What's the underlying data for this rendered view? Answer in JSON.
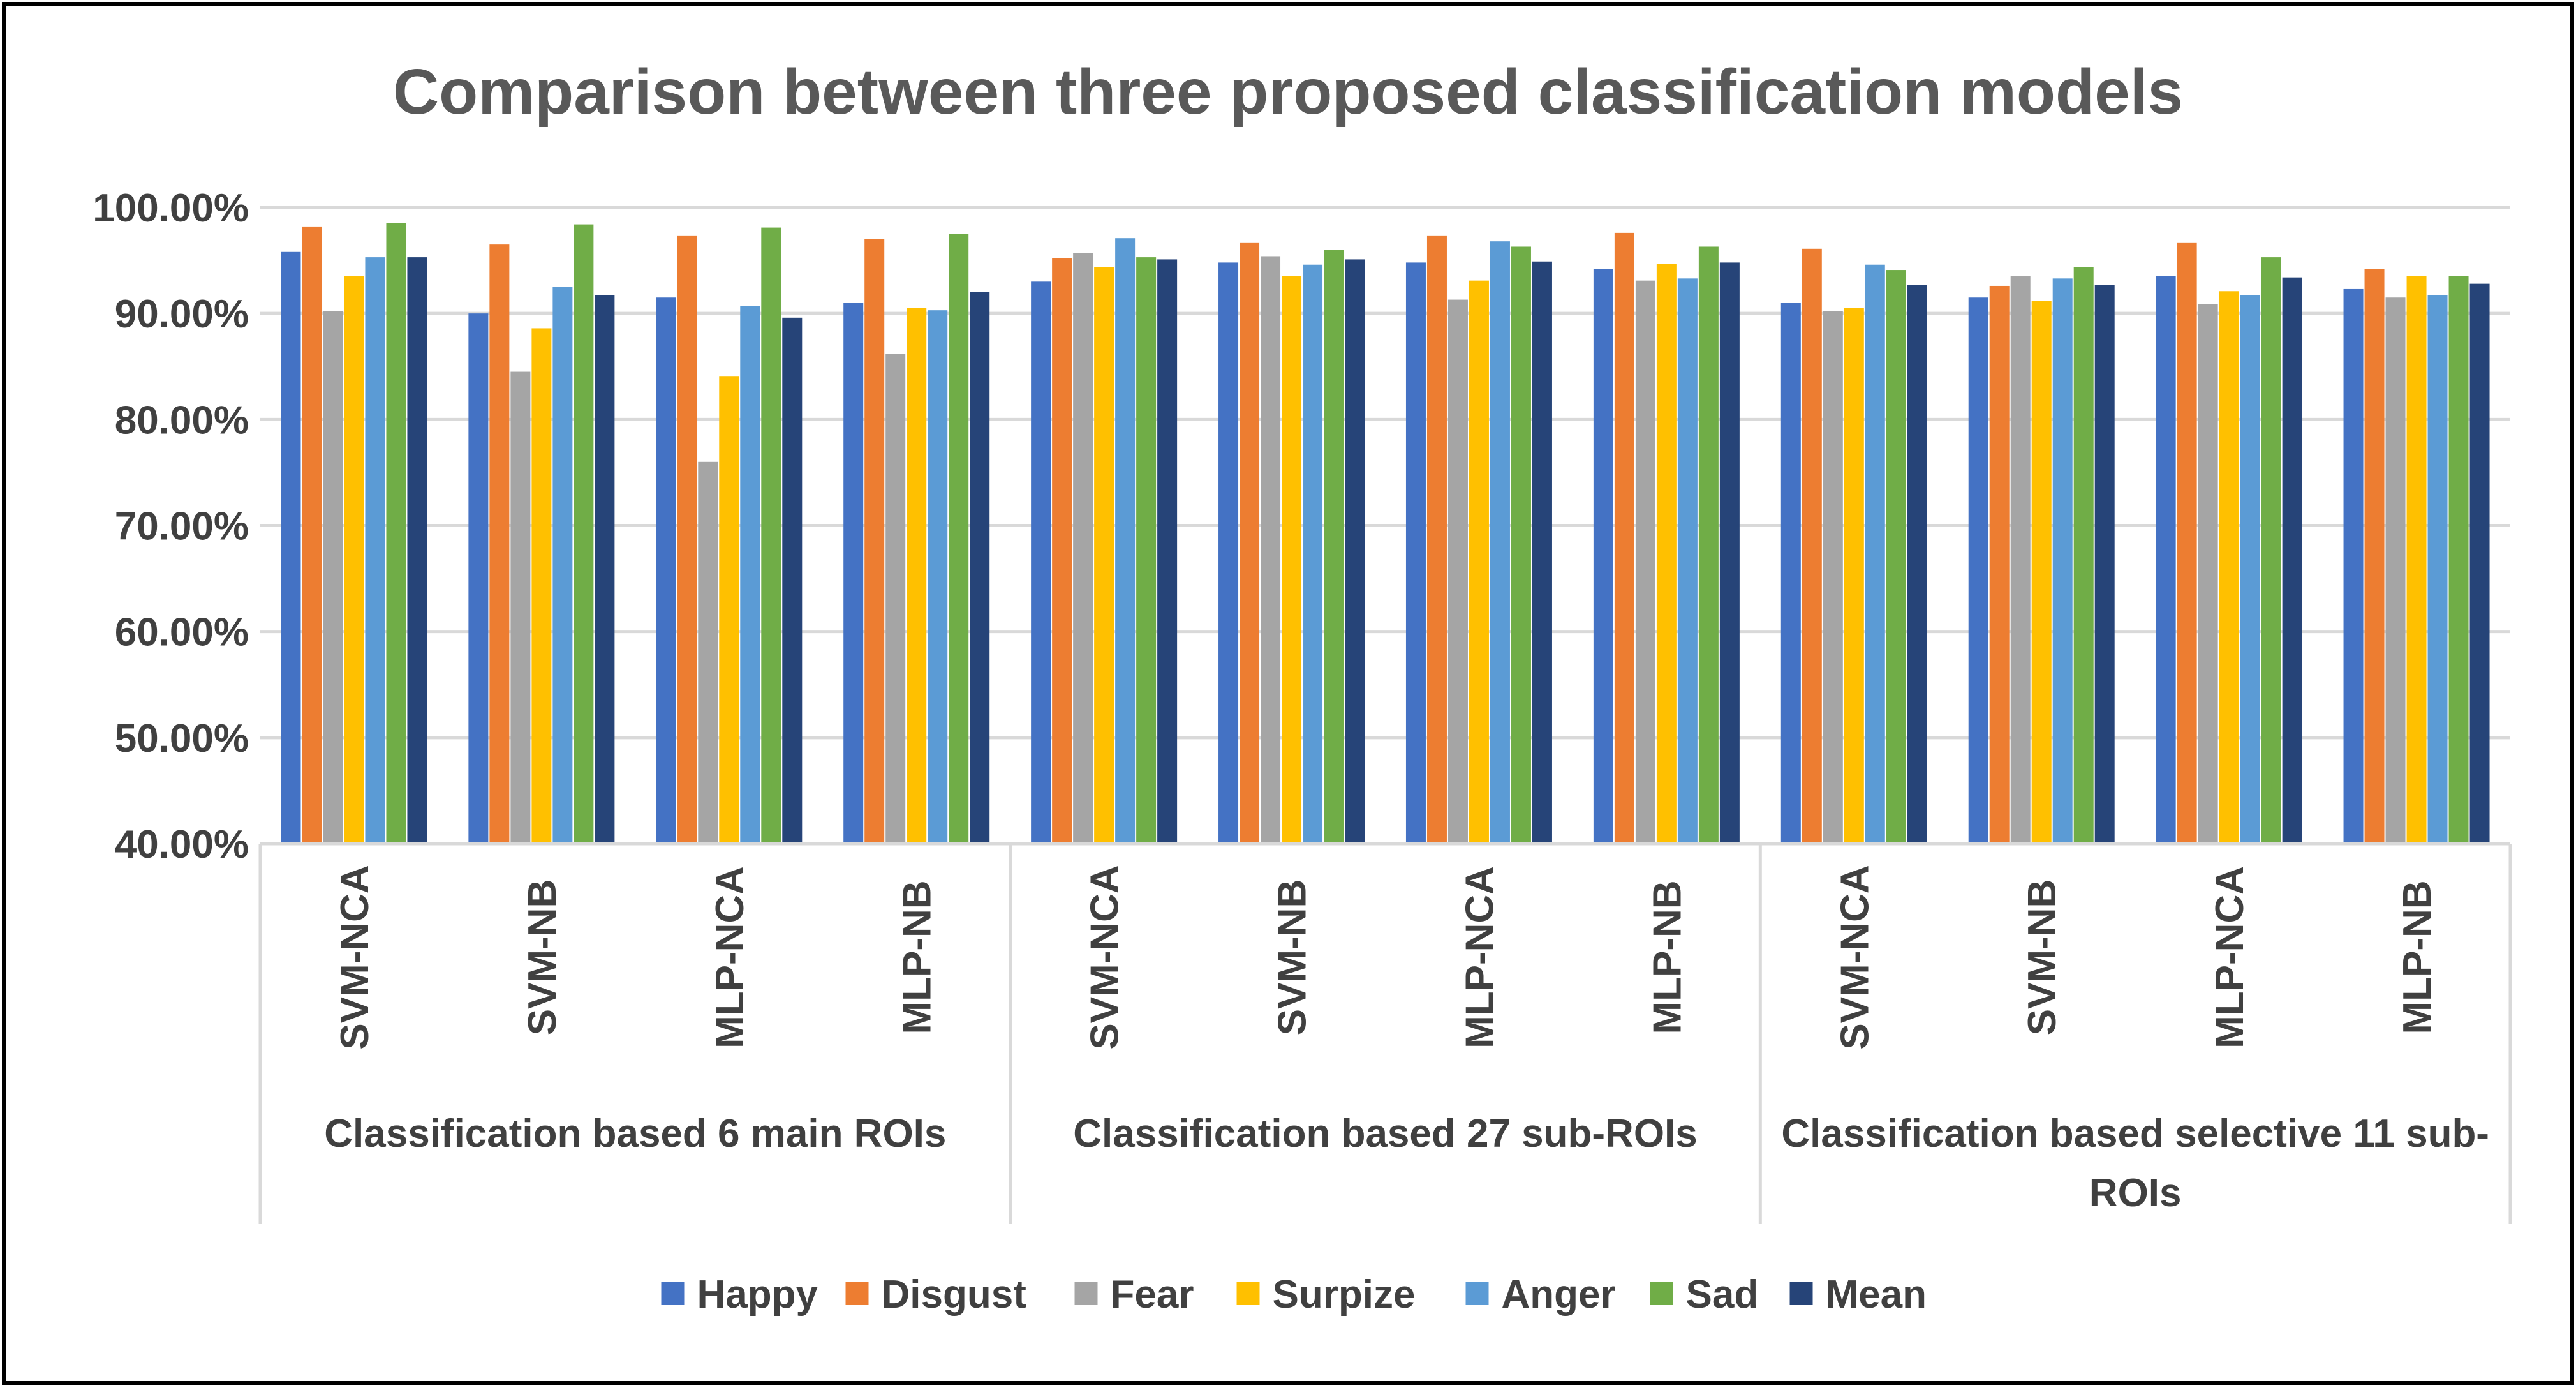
{
  "chart_data": {
    "type": "bar",
    "title": "Comparison between three proposed classification models",
    "xlabel": "",
    "ylabel": "",
    "ylim": [
      0.4,
      1.0
    ],
    "yticks": [
      0.4,
      0.5,
      0.6,
      0.7,
      0.8,
      0.9,
      1.0
    ],
    "ytick_labels": [
      "40.00%",
      "50.00%",
      "60.00%",
      "70.00%",
      "80.00%",
      "90.00%",
      "100.00%"
    ],
    "grid": true,
    "legend_position": "bottom",
    "groups": [
      {
        "label": "Classification based 6 main ROIs",
        "label_lines": [
          "Classification based 6 main ROIs"
        ],
        "categories": [
          "SVM-NCA",
          "SVM-NB",
          "MLP-NCA",
          "MLP-NB"
        ]
      },
      {
        "label": "Classification based 27 sub-ROIs",
        "label_lines": [
          "Classification based 27 sub-ROIs"
        ],
        "categories": [
          "SVM-NCA",
          "SVM-NB",
          "MLP-NCA",
          "MLP-NB"
        ]
      },
      {
        "label": "Classification based selective 11 sub-ROIs",
        "label_lines": [
          "Classification based selective 11 sub-",
          "ROIs"
        ],
        "categories": [
          "SVM-NCA",
          "SVM-NB",
          "MLP-NCA",
          "MLP-NB"
        ]
      }
    ],
    "categories": [
      "SVM-NCA",
      "SVM-NB",
      "MLP-NCA",
      "MLP-NB",
      "SVM-NCA",
      "SVM-NB",
      "MLP-NCA",
      "MLP-NB",
      "SVM-NCA",
      "SVM-NB",
      "MLP-NCA",
      "MLP-NB"
    ],
    "series": [
      {
        "name": "Happy",
        "color": "#4472C4",
        "values": [
          0.958,
          0.9,
          0.915,
          0.91,
          0.93,
          0.948,
          0.948,
          0.942,
          0.91,
          0.915,
          0.935,
          0.923
        ]
      },
      {
        "name": "Disgust",
        "color": "#ED7D31",
        "values": [
          0.982,
          0.965,
          0.973,
          0.97,
          0.952,
          0.967,
          0.973,
          0.976,
          0.961,
          0.926,
          0.967,
          0.942
        ]
      },
      {
        "name": "Fear",
        "color": "#A5A5A5",
        "values": [
          0.902,
          0.845,
          0.76,
          0.862,
          0.957,
          0.954,
          0.913,
          0.931,
          0.902,
          0.935,
          0.909,
          0.915
        ]
      },
      {
        "name": "Surpize",
        "color": "#FFC000",
        "values": [
          0.935,
          0.886,
          0.841,
          0.905,
          0.944,
          0.935,
          0.931,
          0.947,
          0.905,
          0.912,
          0.921,
          0.935
        ]
      },
      {
        "name": "Anger",
        "color": "#5B9BD5",
        "values": [
          0.953,
          0.925,
          0.907,
          0.903,
          0.971,
          0.946,
          0.968,
          0.933,
          0.946,
          0.933,
          0.917,
          0.917
        ]
      },
      {
        "name": "Sad",
        "color": "#70AD47",
        "values": [
          0.985,
          0.984,
          0.981,
          0.975,
          0.953,
          0.96,
          0.963,
          0.963,
          0.941,
          0.944,
          0.953,
          0.935
        ]
      },
      {
        "name": "Mean",
        "color": "#264478",
        "values": [
          0.953,
          0.917,
          0.896,
          0.92,
          0.951,
          0.951,
          0.949,
          0.948,
          0.927,
          0.927,
          0.934,
          0.928
        ]
      }
    ]
  },
  "colors": {
    "grid": "#D9D9D9",
    "axis": "#D9D9D9",
    "text": "#404040",
    "title": "#595959",
    "border": "#000000"
  }
}
